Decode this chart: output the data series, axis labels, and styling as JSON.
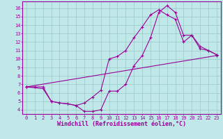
{
  "xlabel": "Windchill (Refroidissement éolien,°C)",
  "bg_color": "#c0e8e8",
  "grid_color": "#a0cccc",
  "line_color": "#990099",
  "xlim": [
    -0.5,
    23.5
  ],
  "ylim": [
    3.5,
    16.8
  ],
  "xticks": [
    0,
    1,
    2,
    3,
    4,
    5,
    6,
    7,
    8,
    9,
    10,
    11,
    12,
    13,
    14,
    15,
    16,
    17,
    18,
    19,
    20,
    21,
    22,
    23
  ],
  "yticks": [
    4,
    5,
    6,
    7,
    8,
    9,
    10,
    11,
    12,
    13,
    14,
    15,
    16
  ],
  "line1_x": [
    0,
    1,
    2,
    3,
    4,
    5,
    6,
    7,
    8,
    9,
    10,
    11,
    12,
    13,
    14,
    15,
    16,
    17,
    18,
    19,
    20,
    21,
    22,
    23
  ],
  "line1_y": [
    6.7,
    6.7,
    6.7,
    5.0,
    4.8,
    4.7,
    4.5,
    3.8,
    3.8,
    4.0,
    6.2,
    6.2,
    7.0,
    9.2,
    10.4,
    12.5,
    15.5,
    16.3,
    15.5,
    12.8,
    12.8,
    11.5,
    11.0,
    10.5
  ],
  "line2_x": [
    0,
    2,
    3,
    4,
    5,
    6,
    7,
    8,
    9,
    10,
    11,
    12,
    13,
    14,
    15,
    16,
    17,
    18,
    19,
    20,
    21,
    22,
    23
  ],
  "line2_y": [
    6.7,
    6.5,
    5.0,
    4.8,
    4.7,
    4.5,
    4.8,
    5.5,
    6.3,
    10.0,
    10.3,
    11.0,
    12.5,
    13.8,
    15.2,
    15.8,
    15.2,
    14.7,
    12.0,
    12.8,
    11.2,
    11.0,
    10.5
  ],
  "line3_x": [
    0,
    23
  ],
  "line3_y": [
    6.7,
    10.4
  ],
  "marker_size": 2.5,
  "tick_font_size": 5.0,
  "xlabel_font_size": 6.0
}
